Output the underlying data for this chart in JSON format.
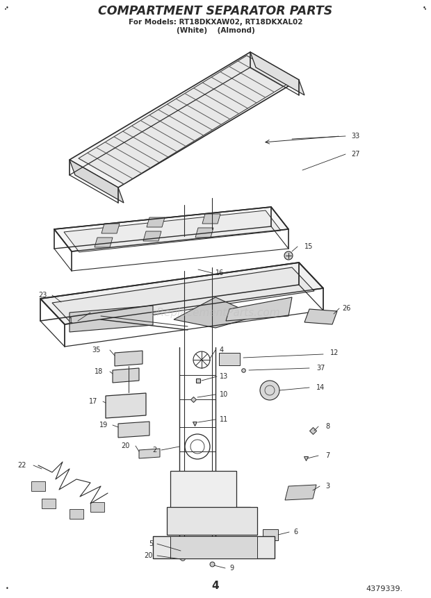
{
  "title": "COMPARTMENT SEPARATOR PARTS",
  "subtitle1": "For Models: RT18DKXAW02, RT18DKXAL02",
  "subtitle2": "(White)    (Almond)",
  "page_number": "4",
  "doc_number": "4379339.",
  "bg_color": "#ffffff",
  "diagram_color": "#2a2a2a",
  "watermark": "eReplacementParts.com",
  "figsize": [
    6.2,
    8.61
  ],
  "dpi": 100
}
